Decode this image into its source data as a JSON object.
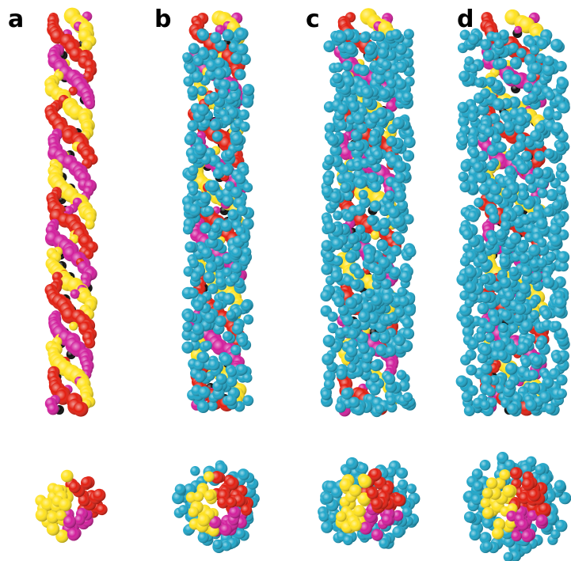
{
  "panels": {
    "a": {
      "label": "a"
    },
    "b": {
      "label": "b"
    },
    "c": {
      "label": "c"
    },
    "d": {
      "label": "d"
    }
  },
  "colors": {
    "yellow": "#FFE21E",
    "magenta": "#D21E9C",
    "red": "#E21E10",
    "cyan": "#1EA5C8",
    "shadow": "#0a0a0a"
  },
  "panel_coverage": {
    "a": 0.0,
    "b": 0.45,
    "c": 0.72,
    "d": 0.9
  }
}
